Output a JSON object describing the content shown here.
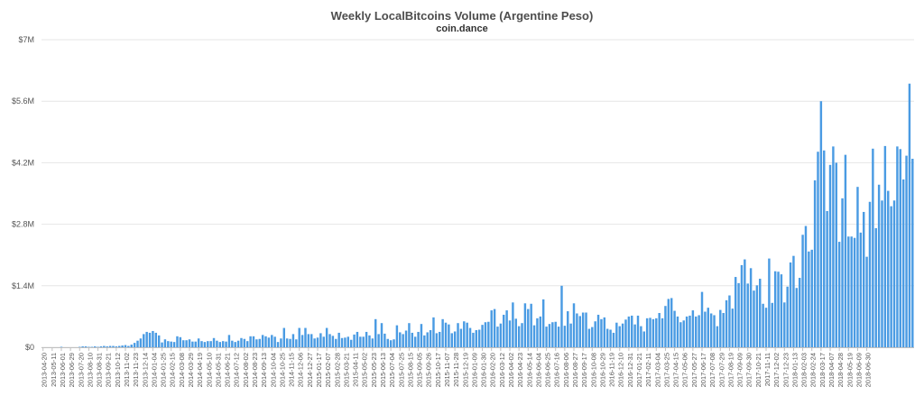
{
  "chart_data": {
    "type": "bar",
    "title": "Weekly LocalBitcoins Volume (Argentine Peso)",
    "subtitle": "coin.dance",
    "xlabel": "",
    "ylabel": "",
    "y_ticks": [
      "$0",
      "$1.4M",
      "$2.8M",
      "$4.2M",
      "$5.6M",
      "$7M"
    ],
    "ylim": [
      0,
      7000000
    ],
    "grid": true,
    "legend": "none",
    "bar_color": "#4a9be3",
    "x_tick_labels": [
      "2013-04-20",
      "2013-05-11",
      "2013-06-01",
      "2013-06-29",
      "2013-07-20",
      "2013-08-10",
      "2013-08-31",
      "2013-09-21",
      "2013-10-12",
      "2013-11-02",
      "2013-11-23",
      "2013-12-14",
      "2014-01-04",
      "2014-01-25",
      "2014-02-15",
      "2014-03-08",
      "2014-03-29",
      "2014-04-19",
      "2014-05-10",
      "2014-05-31",
      "2014-06-21",
      "2014-07-12",
      "2014-08-02",
      "2014-08-23",
      "2014-09-13",
      "2014-10-04",
      "2014-10-25",
      "2014-11-15",
      "2014-12-06",
      "2014-12-27",
      "2015-01-17",
      "2015-02-07",
      "2015-02-28",
      "2015-03-21",
      "2015-04-11",
      "2015-05-02",
      "2015-05-23",
      "2015-06-13",
      "2015-07-04",
      "2015-07-25",
      "2015-08-15",
      "2015-09-05",
      "2015-09-26",
      "2015-10-17",
      "2015-11-07",
      "2015-11-28",
      "2015-12-19",
      "2016-01-09",
      "2016-01-30",
      "2016-02-20",
      "2016-03-12",
      "2016-04-02",
      "2016-04-23",
      "2016-05-14",
      "2016-06-04",
      "2016-06-25",
      "2016-07-16",
      "2016-08-06",
      "2016-08-27",
      "2016-09-17",
      "2016-10-08",
      "2016-10-29",
      "2016-11-19",
      "2016-12-10",
      "2016-12-31",
      "2017-01-21",
      "2017-02-11",
      "2017-03-04",
      "2017-03-25",
      "2017-04-15",
      "2017-05-06",
      "2017-05-27",
      "2017-06-17",
      "2017-07-08",
      "2017-07-29",
      "2017-08-19",
      "2017-09-09",
      "2017-09-30",
      "2017-10-21",
      "2017-11-11",
      "2017-12-02",
      "2017-12-23",
      "2018-01-13",
      "2018-02-03",
      "2018-02-24",
      "2018-03-17",
      "2018-04-07",
      "2018-04-28",
      "2018-05-19",
      "2018-06-09",
      "2018-06-30"
    ],
    "values": [
      0,
      0,
      0,
      0,
      0,
      0,
      10000,
      0,
      0,
      0,
      0,
      0,
      10000,
      20000,
      20000,
      10000,
      10000,
      20000,
      10000,
      20000,
      30000,
      20000,
      30000,
      30000,
      20000,
      30000,
      40000,
      50000,
      30000,
      60000,
      100000,
      150000,
      200000,
      300000,
      350000,
      330000,
      370000,
      330000,
      270000,
      110000,
      180000,
      140000,
      130000,
      120000,
      250000,
      230000,
      160000,
      160000,
      180000,
      130000,
      130000,
      200000,
      140000,
      120000,
      140000,
      140000,
      210000,
      150000,
      120000,
      140000,
      130000,
      280000,
      150000,
      120000,
      150000,
      210000,
      190000,
      140000,
      250000,
      250000,
      180000,
      190000,
      280000,
      250000,
      220000,
      280000,
      240000,
      120000,
      200000,
      440000,
      200000,
      190000,
      300000,
      180000,
      440000,
      280000,
      440000,
      300000,
      300000,
      200000,
      220000,
      320000,
      240000,
      440000,
      300000,
      260000,
      190000,
      330000,
      210000,
      220000,
      240000,
      170000,
      290000,
      350000,
      240000,
      240000,
      350000,
      270000,
      200000,
      640000,
      300000,
      550000,
      310000,
      190000,
      160000,
      180000,
      500000,
      340000,
      300000,
      380000,
      550000,
      330000,
      240000,
      350000,
      530000,
      270000,
      340000,
      390000,
      680000,
      320000,
      350000,
      640000,
      560000,
      520000,
      320000,
      360000,
      550000,
      420000,
      590000,
      560000,
      440000,
      330000,
      390000,
      400000,
      510000,
      570000,
      580000,
      840000,
      870000,
      470000,
      540000,
      740000,
      840000,
      610000,
      1020000,
      650000,
      480000,
      550000,
      1000000,
      870000,
      990000,
      500000,
      660000,
      700000,
      1090000,
      470000,
      530000,
      570000,
      580000,
      470000,
      1400000,
      490000,
      820000,
      540000,
      1000000,
      770000,
      710000,
      790000,
      790000,
      420000,
      460000,
      590000,
      740000,
      640000,
      680000,
      420000,
      400000,
      330000,
      560000,
      480000,
      540000,
      630000,
      700000,
      720000,
      520000,
      720000,
      480000,
      360000,
      660000,
      670000,
      640000,
      660000,
      780000,
      660000,
      940000,
      1100000,
      1120000,
      830000,
      700000,
      570000,
      610000,
      700000,
      720000,
      840000,
      700000,
      730000,
      1260000,
      810000,
      900000,
      770000,
      730000,
      480000,
      850000,
      780000,
      1070000,
      1180000,
      880000,
      1600000,
      1460000,
      1870000,
      2000000,
      1450000,
      1800000,
      1290000,
      1410000,
      1560000,
      990000,
      900000,
      2020000,
      1010000,
      1730000,
      1720000,
      1660000,
      1020000,
      1380000,
      1930000,
      2080000,
      1350000,
      1580000,
      2560000,
      2760000,
      2180000,
      2220000,
      3800000,
      4450000,
      5600000,
      4480000,
      3100000,
      4150000,
      4570000,
      4200000,
      2400000,
      3390000,
      4380000,
      2520000,
      2520000,
      2490000,
      3650000,
      2610000,
      3080000,
      2060000,
      3310000,
      4520000,
      2710000,
      3700000,
      3340000,
      4580000,
      3560000,
      3210000,
      3340000,
      4570000,
      4510000,
      3820000,
      4360000,
      6000000,
      4290000
    ]
  }
}
